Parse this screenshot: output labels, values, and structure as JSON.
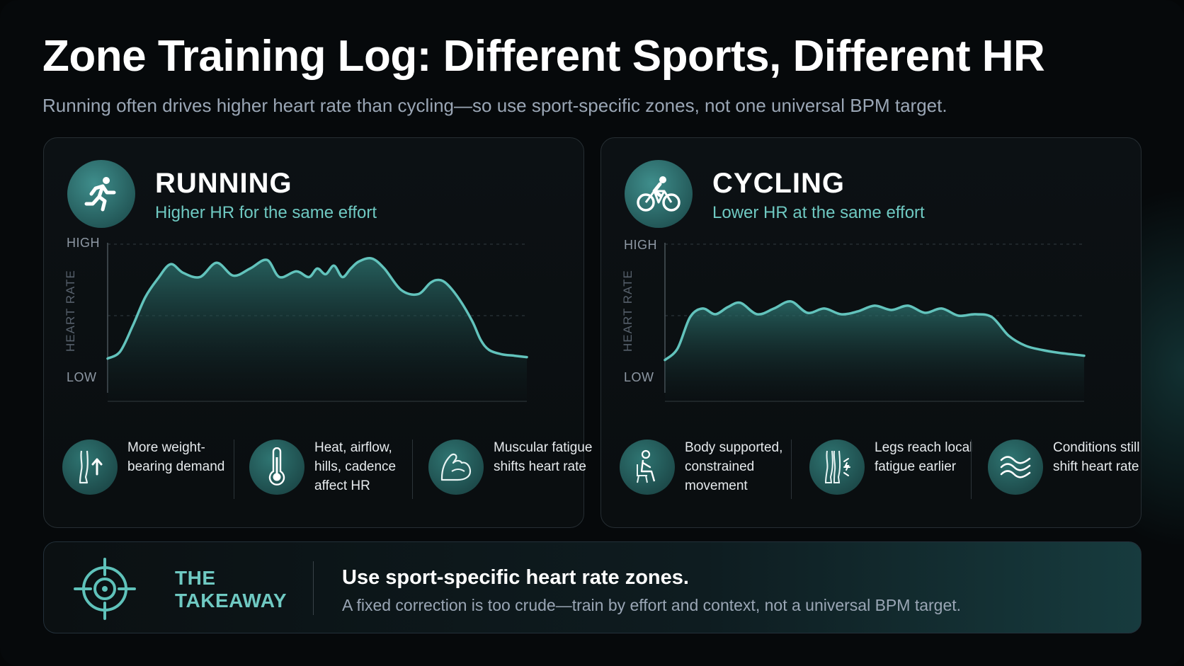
{
  "title": "Zone Training Log: Different Sports, Different HR",
  "subtitle": "Running often drives higher heart rate than cycling—so use sport-specific zones, not one universal BPM target.",
  "colors": {
    "accent": "#6fc9c2",
    "line": "#62c3bc",
    "background": "#06090b"
  },
  "panels": [
    {
      "name": "RUNNING",
      "tagline": "Higher HR for the same effort",
      "icon": "running-person-icon",
      "factors": [
        {
          "icon": "leg-up-arrow-icon",
          "text": "More weight-bearing demand"
        },
        {
          "icon": "thermometer-icon",
          "text": "Heat, airflow, hills, cadence affect HR"
        },
        {
          "icon": "flexed-arm-icon",
          "text": "Muscular fatigue shifts heart rate"
        }
      ]
    },
    {
      "name": "CYCLING",
      "tagline": "Lower HR at the same effort",
      "icon": "cyclist-icon",
      "factors": [
        {
          "icon": "seated-person-icon",
          "text": "Body supported, constrained movement"
        },
        {
          "icon": "legs-fatigue-icon",
          "text": "Legs reach local fatigue earlier"
        },
        {
          "icon": "wind-waves-icon",
          "text": "Conditions still shift heart rate"
        }
      ]
    }
  ],
  "chart_data": [
    {
      "type": "area",
      "title": "RUNNING",
      "ylabel": "HEART RATE",
      "y_tick_labels": [
        "HIGH",
        "LOW"
      ],
      "ylim": [
        0,
        1
      ],
      "xlim": [
        0,
        100
      ],
      "grid": "dashed horizontal",
      "series": [
        {
          "x": [
            0,
            3,
            6,
            9,
            12,
            15,
            18,
            22,
            26,
            30,
            34,
            38,
            41,
            45,
            48,
            50,
            52,
            54,
            56,
            58,
            60,
            63,
            66,
            70,
            74,
            77,
            79,
            81,
            84,
            87,
            89,
            91,
            94,
            97,
            100
          ],
          "values": [
            0.19,
            0.24,
            0.42,
            0.62,
            0.75,
            0.85,
            0.79,
            0.76,
            0.86,
            0.77,
            0.82,
            0.88,
            0.76,
            0.8,
            0.76,
            0.82,
            0.78,
            0.84,
            0.76,
            0.82,
            0.87,
            0.89,
            0.82,
            0.67,
            0.64,
            0.72,
            0.74,
            0.71,
            0.6,
            0.45,
            0.32,
            0.25,
            0.22,
            0.21,
            0.2
          ]
        }
      ]
    },
    {
      "type": "area",
      "title": "CYCLING",
      "ylabel": "HEART RATE",
      "y_tick_labels": [
        "HIGH",
        "LOW"
      ],
      "ylim": [
        0,
        1
      ],
      "xlim": [
        0,
        100
      ],
      "grid": "dashed horizontal",
      "series": [
        {
          "x": [
            0,
            3,
            6,
            9,
            12,
            15,
            18,
            22,
            26,
            30,
            34,
            38,
            42,
            46,
            50,
            54,
            58,
            62,
            66,
            70,
            74,
            78,
            82,
            86,
            90,
            94,
            97,
            100
          ],
          "values": [
            0.18,
            0.26,
            0.48,
            0.54,
            0.5,
            0.55,
            0.58,
            0.5,
            0.54,
            0.59,
            0.51,
            0.54,
            0.5,
            0.52,
            0.56,
            0.53,
            0.56,
            0.51,
            0.54,
            0.49,
            0.5,
            0.48,
            0.35,
            0.28,
            0.25,
            0.23,
            0.22,
            0.21
          ]
        }
      ]
    }
  ],
  "takeaway": {
    "label": "THE TAKEAWAY",
    "headline": "Use sport-specific heart rate zones.",
    "body": "A fixed correction is too crude—train by effort and context, not a universal BPM target.",
    "icon": "target-icon"
  }
}
